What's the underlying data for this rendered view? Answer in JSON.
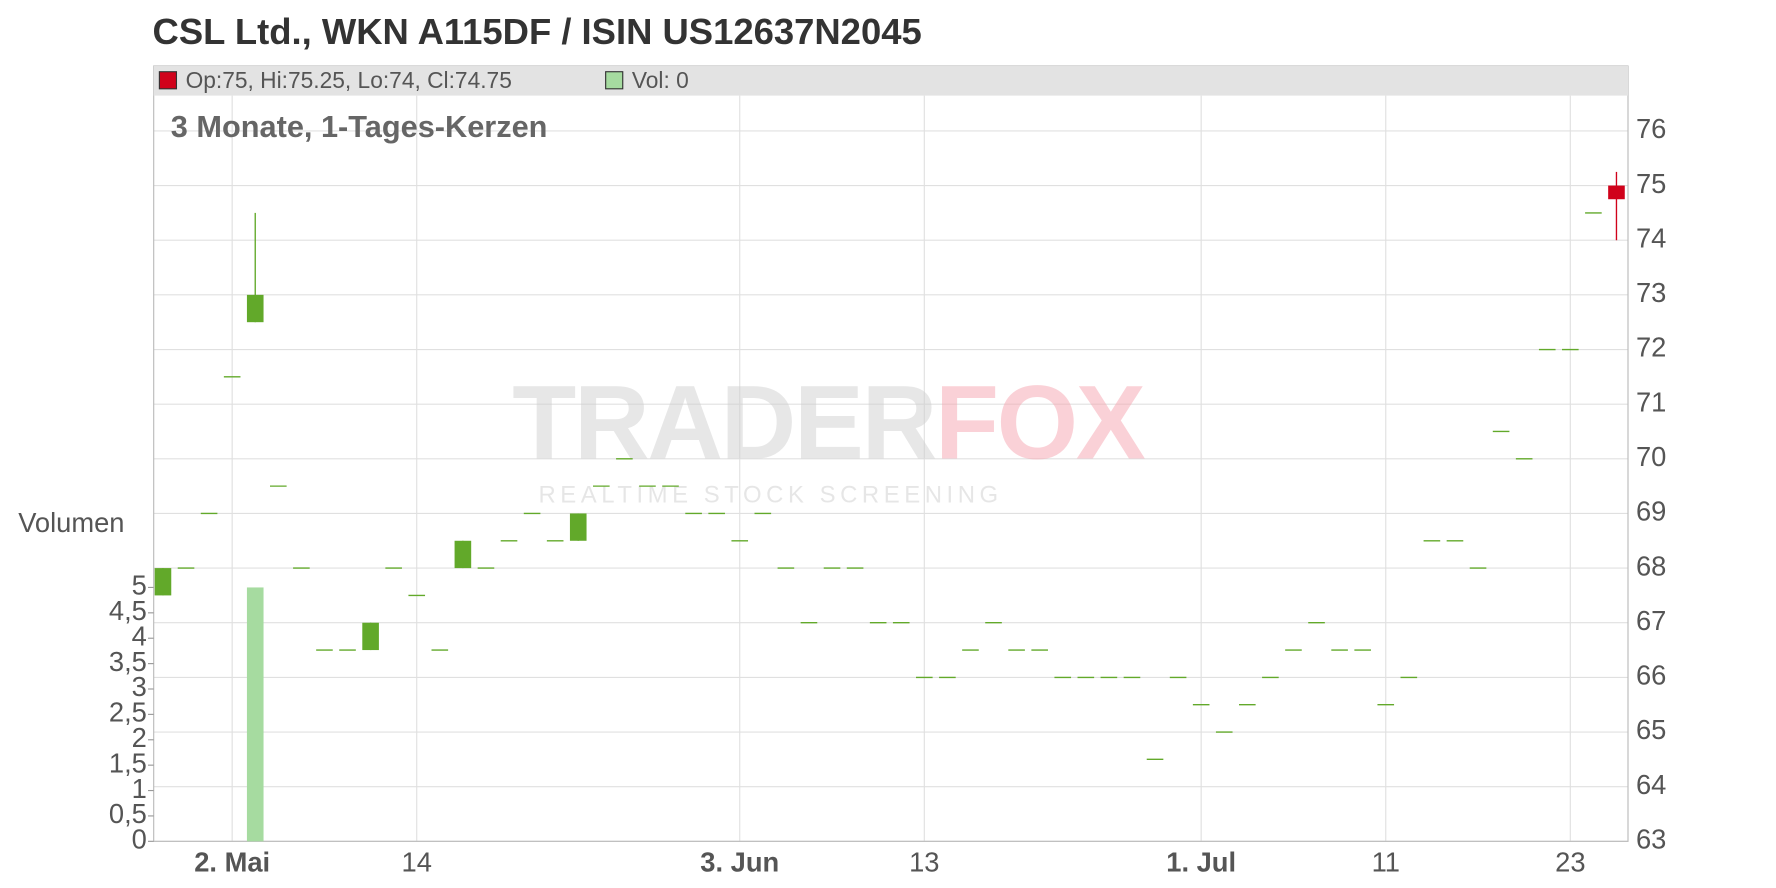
{
  "chart_data": {
    "type": "candlestick",
    "title": "CSL Ltd., WKN A115DF / ISIN US12637N2045",
    "subtitle": "3 Monate, 1-Tages-Kerzen",
    "legend": {
      "ohlc": "Op:75, Hi:75.25, Lo:74, Cl:74.75",
      "volume": "Vol: 0"
    },
    "volume_label": "Volumen",
    "watermark": {
      "brand_a": "TRADER",
      "brand_b": "FOX",
      "tagline": "REALTIME STOCK SCREENING"
    },
    "categories": [
      null,
      null,
      null,
      "2. Mai",
      null,
      null,
      null,
      null,
      null,
      null,
      null,
      "14",
      null,
      null,
      null,
      null,
      null,
      null,
      null,
      null,
      null,
      null,
      null,
      null,
      null,
      "3. Jun",
      null,
      null,
      null,
      null,
      null,
      null,
      null,
      "13",
      null,
      null,
      null,
      null,
      null,
      null,
      null,
      null,
      null,
      null,
      null,
      "1. Jul",
      null,
      null,
      null,
      null,
      null,
      null,
      null,
      "11",
      null,
      null,
      null,
      null,
      null,
      null,
      null,
      "23",
      null,
      null
    ],
    "open": [
      67.5,
      68,
      69,
      71.5,
      72.5,
      69.5,
      68,
      66.5,
      66.5,
      66.5,
      68,
      67.5,
      66.5,
      68,
      68,
      68.5,
      69,
      68.5,
      68.5,
      69.5,
      70,
      69.5,
      69.5,
      69,
      69,
      68.5,
      69,
      68,
      67,
      68,
      68,
      67,
      67,
      66,
      66,
      66.5,
      67,
      66.5,
      66.5,
      66,
      66,
      66,
      66,
      64.5,
      66,
      65.5,
      65,
      65.5,
      66,
      66.5,
      67,
      66.5,
      66.5,
      65.5,
      66,
      68.5,
      68.5,
      68,
      70.5,
      70,
      72,
      72,
      74.5,
      75
    ],
    "high": [
      68,
      68,
      69,
      71.5,
      74.5,
      69.5,
      68,
      66.5,
      66.5,
      67,
      68,
      67.5,
      66.5,
      68.5,
      68,
      68.5,
      69,
      68.5,
      69,
      69.5,
      70,
      69.5,
      69.5,
      69,
      69,
      68.5,
      69,
      68,
      67,
      68,
      68,
      67,
      67,
      66,
      66,
      66.5,
      67,
      66.5,
      66.5,
      66,
      66,
      66,
      66,
      64.5,
      66,
      65.5,
      65,
      65.5,
      66,
      66.5,
      67,
      66.5,
      66.5,
      65.5,
      66,
      68.5,
      68.5,
      68,
      70.5,
      70,
      72,
      72,
      74.5,
      75.25
    ],
    "low": [
      67.5,
      68,
      69,
      71.5,
      72.5,
      69.5,
      68,
      66.5,
      66.5,
      66.5,
      68,
      67.5,
      66.5,
      68,
      68,
      68.5,
      69,
      68.5,
      68.5,
      69.5,
      70,
      69.5,
      69.5,
      69,
      69,
      68.5,
      69,
      68,
      67,
      68,
      68,
      67,
      67,
      66,
      66,
      66.5,
      67,
      66.5,
      66.5,
      66,
      66,
      66,
      66,
      64.5,
      66,
      65.5,
      65,
      65.5,
      66,
      66.5,
      67,
      66.5,
      66.5,
      65.5,
      66,
      68.5,
      68.5,
      68,
      70.5,
      70,
      72,
      72,
      74.5,
      74
    ],
    "close": [
      68,
      68,
      69,
      71.5,
      73,
      69.5,
      68,
      66.5,
      66.5,
      67,
      68,
      67.5,
      66.5,
      68.5,
      68,
      68.5,
      69,
      68.5,
      69,
      69.5,
      70,
      69.5,
      69.5,
      69,
      69,
      68.5,
      69,
      68,
      67,
      68,
      68,
      67,
      67,
      66,
      66,
      66.5,
      67,
      66.5,
      66.5,
      66,
      66,
      66,
      66,
      64.5,
      66,
      65.5,
      65,
      65.5,
      66,
      66.5,
      67,
      66.5,
      66.5,
      65.5,
      66,
      68.5,
      68.5,
      68,
      70.5,
      70,
      72,
      72,
      74.5,
      74.75
    ],
    "volume": [
      0,
      0,
      0,
      0,
      5,
      0,
      0,
      0,
      0,
      0,
      0,
      0,
      0,
      0,
      0,
      0,
      0,
      0,
      0,
      0,
      0,
      0,
      0,
      0,
      0,
      0,
      0,
      0,
      0,
      0,
      0,
      0,
      0,
      0,
      0,
      0,
      0,
      0,
      0,
      0,
      0,
      0,
      0,
      0,
      0,
      0,
      0,
      0,
      0,
      0,
      0,
      0,
      0,
      0,
      0,
      0,
      0,
      0,
      0,
      0,
      0,
      0,
      0,
      0
    ],
    "colors": {
      "up": "#62a92a",
      "down": "#d0021b",
      "volume": "#a6dba0"
    },
    "ylim": [
      63,
      76
    ],
    "yticks": [
      63,
      64,
      65,
      66,
      67,
      68,
      69,
      70,
      71,
      72,
      73,
      74,
      75,
      76
    ],
    "y2lim": [
      0,
      5
    ],
    "y2ticks": [
      0,
      {
        "value": 0.5,
        "label": "0,5"
      },
      1,
      {
        "value": 1.5,
        "label": "1,5"
      },
      2,
      {
        "value": 2.5,
        "label": "2,5"
      },
      3,
      {
        "value": 3.5,
        "label": "3,5"
      },
      4,
      {
        "value": 4.5,
        "label": "4,5"
      },
      5
    ],
    "grid": true
  }
}
